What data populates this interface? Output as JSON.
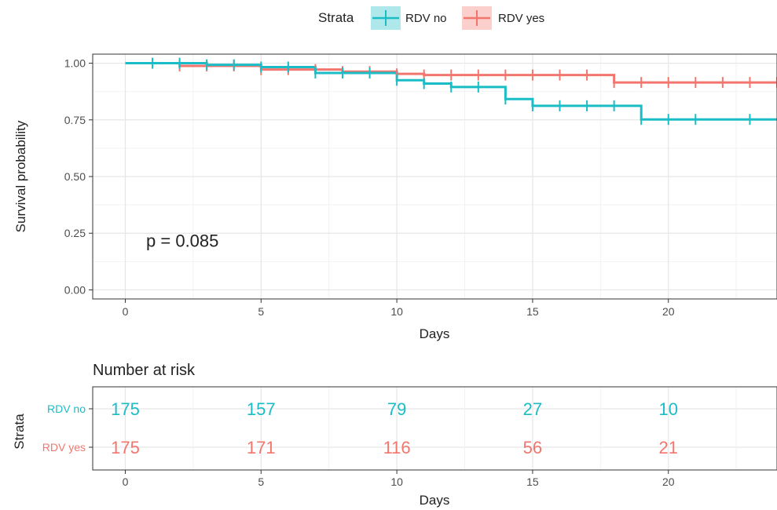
{
  "legend": {
    "title": "Strata",
    "entries": [
      "RDV no",
      "RDV yes"
    ]
  },
  "colors": {
    "rdv_no": "#1ABDC6",
    "rdv_yes": "#F2766E",
    "grid_major": "#E6E6E6",
    "grid_minor": "#F2F2F2",
    "border": "#333333",
    "text": "#222222",
    "tick_text": "#4D4D4D"
  },
  "chart_data": [
    {
      "type": "line",
      "subtype": "step",
      "title": "",
      "xlabel": "Days",
      "ylabel": "Survival probability",
      "xlim": [
        -1.2,
        24
      ],
      "ylim": [
        -0.04,
        1.04
      ],
      "x_ticks": [
        0,
        5,
        10,
        15,
        20
      ],
      "x_tick_labels": [
        "0",
        "5",
        "10",
        "15",
        "20"
      ],
      "y_ticks": [
        0,
        0.25,
        0.5,
        0.75,
        1
      ],
      "y_tick_labels": [
        "0.00",
        "0.25",
        "0.50",
        "0.75",
        "1.00"
      ],
      "grid": true,
      "legend_position": "top",
      "annotation": "p = 0.085",
      "annotation_x": 1,
      "annotation_y": 0.19,
      "series": [
        {
          "name": "RDV no",
          "color_key": "rdv_no",
          "steps": [
            [
              0,
              1.0
            ],
            [
              3,
              0.993
            ],
            [
              5,
              0.983
            ],
            [
              7,
              0.957
            ],
            [
              10,
              0.925
            ],
            [
              11,
              0.91
            ],
            [
              12,
              0.895
            ],
            [
              14,
              0.842
            ],
            [
              15,
              0.812
            ],
            [
              19,
              0.752
            ],
            [
              24,
              0.752
            ]
          ],
          "censor_x": [
            1,
            2,
            3,
            4,
            5,
            6,
            7,
            8,
            9,
            10,
            11,
            12,
            13,
            14,
            15,
            16,
            17,
            18,
            19,
            20,
            21,
            23
          ]
        },
        {
          "name": "RDV yes",
          "color_key": "rdv_yes",
          "steps": [
            [
              0,
              1.0
            ],
            [
              2,
              0.988
            ],
            [
              5,
              0.972
            ],
            [
              8,
              0.963
            ],
            [
              10,
              0.953
            ],
            [
              11,
              0.948
            ],
            [
              18,
              0.915
            ],
            [
              24,
              0.915
            ]
          ],
          "censor_x": [
            2,
            3,
            4,
            5,
            6,
            7,
            8,
            9,
            10,
            11,
            12,
            13,
            14,
            15,
            16,
            17,
            18,
            19,
            20,
            21,
            22,
            23,
            24
          ]
        }
      ]
    },
    {
      "type": "table",
      "title": "Number at risk",
      "xlabel": "Days",
      "ylabel": "Strata",
      "x_ticks": [
        0,
        5,
        10,
        15,
        20
      ],
      "x_tick_labels": [
        "0",
        "5",
        "10",
        "15",
        "20"
      ],
      "rows": [
        {
          "name": "RDV no",
          "color_key": "rdv_no",
          "values": [
            175,
            157,
            79,
            27,
            10
          ]
        },
        {
          "name": "RDV yes",
          "color_key": "rdv_yes",
          "values": [
            175,
            171,
            116,
            56,
            21
          ]
        }
      ]
    }
  ]
}
